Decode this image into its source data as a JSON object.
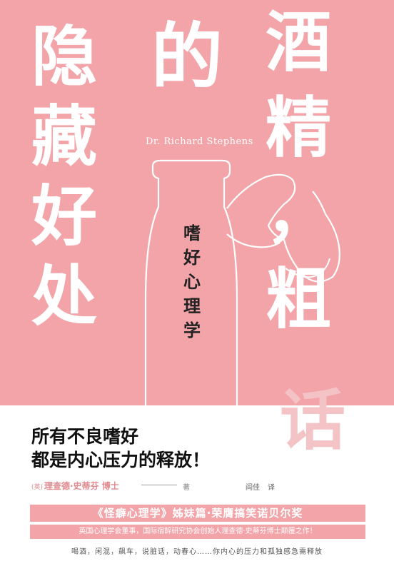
{
  "title": {
    "col1": [
      "隐",
      "藏",
      "好",
      "处"
    ],
    "col2": "的",
    "col3": [
      "酒",
      "精",
      "，",
      "粗"
    ],
    "faded": "话"
  },
  "author_en": "Dr. Richard Stephens",
  "subtitle": [
    "嗜",
    "好",
    "心",
    "理",
    "学"
  ],
  "slogan": {
    "line1": "所有不良嗜好",
    "line2": "都是内心压力的释放！"
  },
  "credits": {
    "country": "(英)",
    "author": "理查德·史蒂芬 博士",
    "role": "著",
    "translator": "阎佳",
    "translator_role": "译"
  },
  "banner1": "《怪癖心理学》姊妹篇·荣膺搞笑诺贝尔奖",
  "banner2": "英国心理学会董事，国际宿醉研究协会创始人理查德·史蒂芬博士颠覆之作！",
  "tagline": "喝酒，闲混，飙车，说脏话，动春心……你内心的压力和孤独感急需释放",
  "colors": {
    "pink": "#f2a4a9",
    "white": "#ffffff",
    "faded": "#f4c3c6",
    "text": "#111111"
  }
}
